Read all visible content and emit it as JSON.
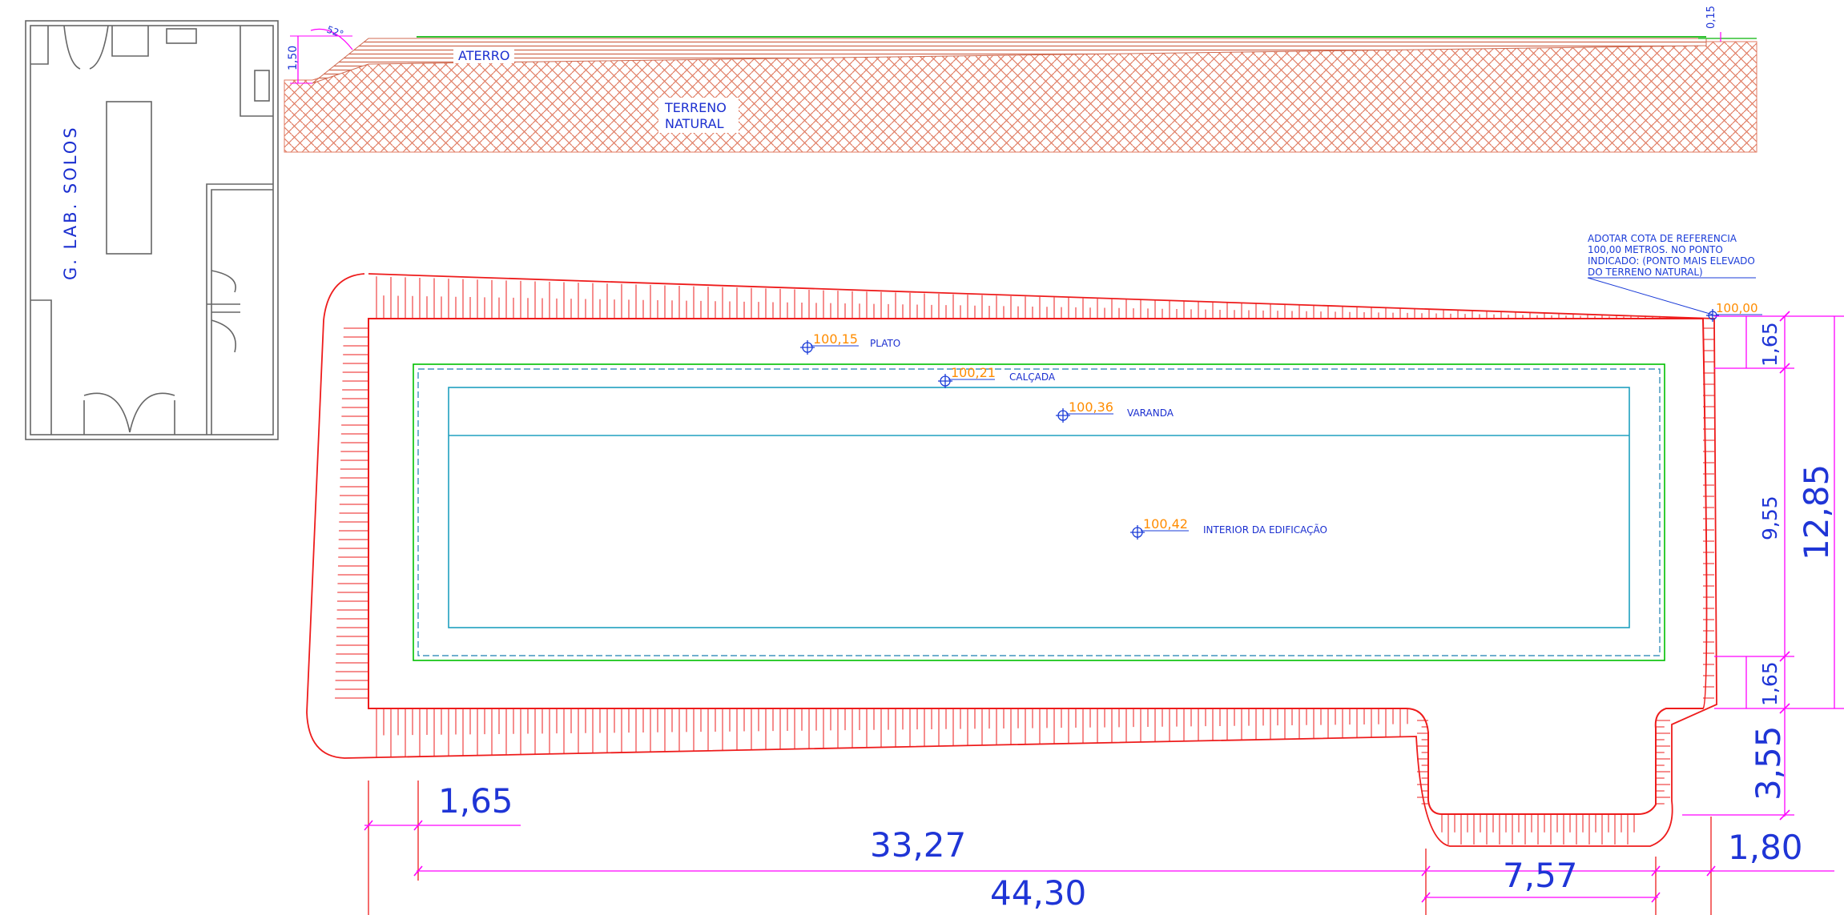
{
  "colors": {
    "background": "#ffffff",
    "floorplan": "#666666",
    "soil": "#e07a60",
    "fill_hatch": "#d06a50",
    "slope": "#ee1c1c",
    "dimension": "#ff00ff",
    "dimension_text": "#1f35d6",
    "elevation": "#ff8c00",
    "label": "#1b2fd0",
    "walkway": "#00c000",
    "building": "#20a0c0",
    "datum": "#1a3bd8"
  },
  "floorplan": {
    "title": "G. LAB. SOLOS"
  },
  "section": {
    "fill_label": "ATERRO",
    "natural_label_line1": "TERRENO",
    "natural_label_line2": "NATURAL",
    "height_dim": "1,50",
    "slope_angle": "52°",
    "top_dim": "0,15"
  },
  "plan": {
    "note_line1": "ADOTAR COTA DE REFERENCIA",
    "note_line2": "100,00 METROS. NO PONTO",
    "note_line3": "INDICADO: (PONTO MAIS ELEVADO",
    "note_line4": "DO TERRENO NATURAL)",
    "datum_elevation": "100,00",
    "levels": [
      {
        "value": "100,15",
        "name": "PLATO"
      },
      {
        "value": "100,21",
        "name": "CALÇADA"
      },
      {
        "value": "100,36",
        "name": "VARANDA"
      },
      {
        "value": "100,42",
        "name": "INTERIOR DA EDIFICAÇÃO"
      }
    ]
  },
  "dimensions": {
    "left_offset": "1,65",
    "building_length": "33,27",
    "total_length": "44,30",
    "notch_width": "7,57",
    "right_offset": "1,80",
    "side_top": "1,65",
    "side_middle": "9,55",
    "side_bottom": "1,65",
    "side_total": "12,85",
    "notch_depth": "3,55"
  }
}
